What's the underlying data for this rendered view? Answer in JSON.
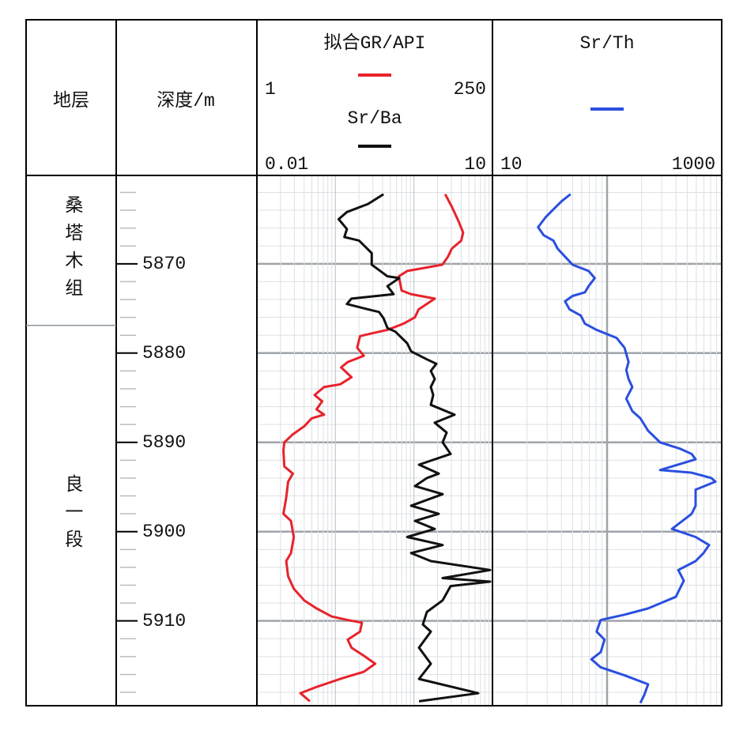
{
  "header": {
    "formation": "地层",
    "depth": "深度/m"
  },
  "depth_axis": {
    "ylim": [
      5860.1,
      5919.5
    ],
    "yticks": [
      5870,
      5880,
      5890,
      5900,
      5910
    ],
    "minor_step": 2
  },
  "formations": [
    {
      "name": "桑塔木组",
      "top": 5860.1,
      "bottom": 5876.9
    },
    {
      "name": "良一段",
      "top": 5876.9,
      "bottom": 5919.5
    }
  ],
  "chart_data": [
    {
      "type": "line",
      "grid": true,
      "series": [
        {
          "name": "拟合GR/API",
          "color": "#e8232c",
          "log": false,
          "xlim": [
            1,
            250
          ],
          "depths": [
            5862.2,
            5863.6,
            5865.2,
            5866.5,
            5867.4,
            5868.3,
            5869.2,
            5870.1,
            5870.4,
            5870.8,
            5871.4,
            5873.0,
            5873.4,
            5873.9,
            5875.1,
            5876.0,
            5876.7,
            5877.4,
            5877.8,
            5878.1,
            5879.4,
            5880.3,
            5881.0,
            5881.6,
            5882.7,
            5883.5,
            5883.8,
            5884.7,
            5885.4,
            5886.3,
            5886.9,
            5887.3,
            5888.2,
            5889.1,
            5890.0,
            5890.9,
            5892.7,
            5893.5,
            5894.4,
            5896.2,
            5898.0,
            5898.8,
            5900.6,
            5902.4,
            5903.3,
            5905.0,
            5906.4,
            5907.7,
            5908.6,
            5909.5,
            5909.9,
            5910.2,
            5911.2,
            5912.1,
            5913.0,
            5913.9,
            5914.8,
            5915.7,
            5916.5,
            5917.4,
            5918.1,
            5919.0
          ],
          "values": [
            200,
            207,
            214,
            219,
            217,
            207,
            203,
            197,
            181,
            160,
            151,
            154,
            164,
            189,
            172,
            168,
            156,
            139,
            122,
            110,
            107,
            114,
            97,
            90,
            101,
            89,
            72,
            62,
            70,
            64,
            72,
            59,
            51,
            39,
            30,
            29,
            30,
            39,
            34,
            32,
            29,
            37,
            40,
            37,
            32,
            34,
            40,
            51,
            64,
            80,
            97,
            112,
            110,
            97,
            101,
            114,
            126,
            114,
            89,
            64,
            47,
            57
          ]
        },
        {
          "name": "Sr/Ba",
          "color": "#111111",
          "log": true,
          "xlim": [
            0.01,
            10
          ],
          "depths": [
            5862.2,
            5863.3,
            5864.2,
            5865.0,
            5866.1,
            5867.0,
            5867.4,
            5868.8,
            5870.1,
            5871.4,
            5871.6,
            5872.5,
            5873.4,
            5873.9,
            5874.5,
            5875.1,
            5875.4,
            5876.1,
            5877.2,
            5877.6,
            5878.9,
            5879.8,
            5880.7,
            5881.2,
            5882.0,
            5882.9,
            5883.8,
            5884.7,
            5885.8,
            5886.9,
            5887.8,
            5888.9,
            5890.0,
            5891.3,
            5892.5,
            5893.5,
            5894.0,
            5894.9,
            5895.8,
            5897.1,
            5898.0,
            5898.8,
            5899.7,
            5900.6,
            5901.5,
            5902.4,
            5903.3,
            5904.3,
            5905.2,
            5905.6,
            5906.1,
            5907.7,
            5909.0,
            5910.4,
            5911.2,
            5913.0,
            5914.8,
            5916.5,
            5918.1,
            5919.0
          ],
          "values": [
            0.41,
            0.26,
            0.14,
            0.11,
            0.14,
            0.13,
            0.2,
            0.29,
            0.29,
            0.46,
            0.65,
            0.46,
            0.55,
            0.16,
            0.14,
            0.26,
            0.36,
            0.41,
            0.46,
            0.58,
            0.82,
            0.92,
            1.46,
            1.93,
            1.64,
            1.84,
            1.64,
            1.76,
            1.64,
            3.29,
            1.84,
            2.61,
            2.32,
            2.93,
            1.16,
            2.07,
            1.46,
            1.03,
            2.32,
            0.92,
            2.07,
            1.03,
            1.84,
            0.82,
            2.32,
            0.92,
            1.64,
            9.33,
            2.32,
            9.33,
            2.93,
            2.32,
            1.46,
            1.3,
            1.64,
            1.16,
            1.64,
            1.16,
            6.59,
            1.16
          ]
        }
      ]
    },
    {
      "type": "line",
      "grid": true,
      "series": [
        {
          "name": "Sr/Th",
          "color": "#2a4fe0",
          "log": true,
          "xlim": [
            10,
            1000
          ],
          "depths": [
            5862.2,
            5863.0,
            5863.9,
            5864.8,
            5865.9,
            5866.8,
            5867.4,
            5868.3,
            5869.2,
            5870.1,
            5870.8,
            5871.6,
            5872.5,
            5873.2,
            5873.6,
            5874.2,
            5875.1,
            5875.8,
            5876.7,
            5877.4,
            5878.3,
            5879.4,
            5881.0,
            5881.9,
            5882.9,
            5883.8,
            5885.1,
            5886.5,
            5887.3,
            5888.7,
            5890.0,
            5890.7,
            5891.3,
            5891.9,
            5893.1,
            5893.4,
            5894.0,
            5894.4,
            5895.3,
            5897.1,
            5898.0,
            5899.7,
            5900.6,
            5901.5,
            5902.4,
            5903.3,
            5904.3,
            5905.5,
            5906.4,
            5907.3,
            5908.6,
            5909.3,
            5909.9,
            5911.2,
            5912.1,
            5913.5,
            5914.3,
            5915.2,
            5916.1,
            5917.1,
            5918.3,
            5919.2
          ],
          "values": [
            48,
            40,
            34,
            29,
            25,
            28,
            34,
            37,
            43,
            50,
            69,
            78,
            69,
            64,
            50,
            43,
            47,
            59,
            64,
            81,
            121,
            142,
            154,
            147,
            154,
            166,
            147,
            166,
            195,
            228,
            290,
            431,
            547,
            592,
            290,
            547,
            813,
            881,
            592,
            592,
            547,
            368,
            592,
            776,
            694,
            592,
            418,
            467,
            431,
            398,
            228,
            142,
            88,
            81,
            95,
            88,
            73,
            88,
            142,
            228,
            211,
            195
          ]
        }
      ]
    }
  ]
}
